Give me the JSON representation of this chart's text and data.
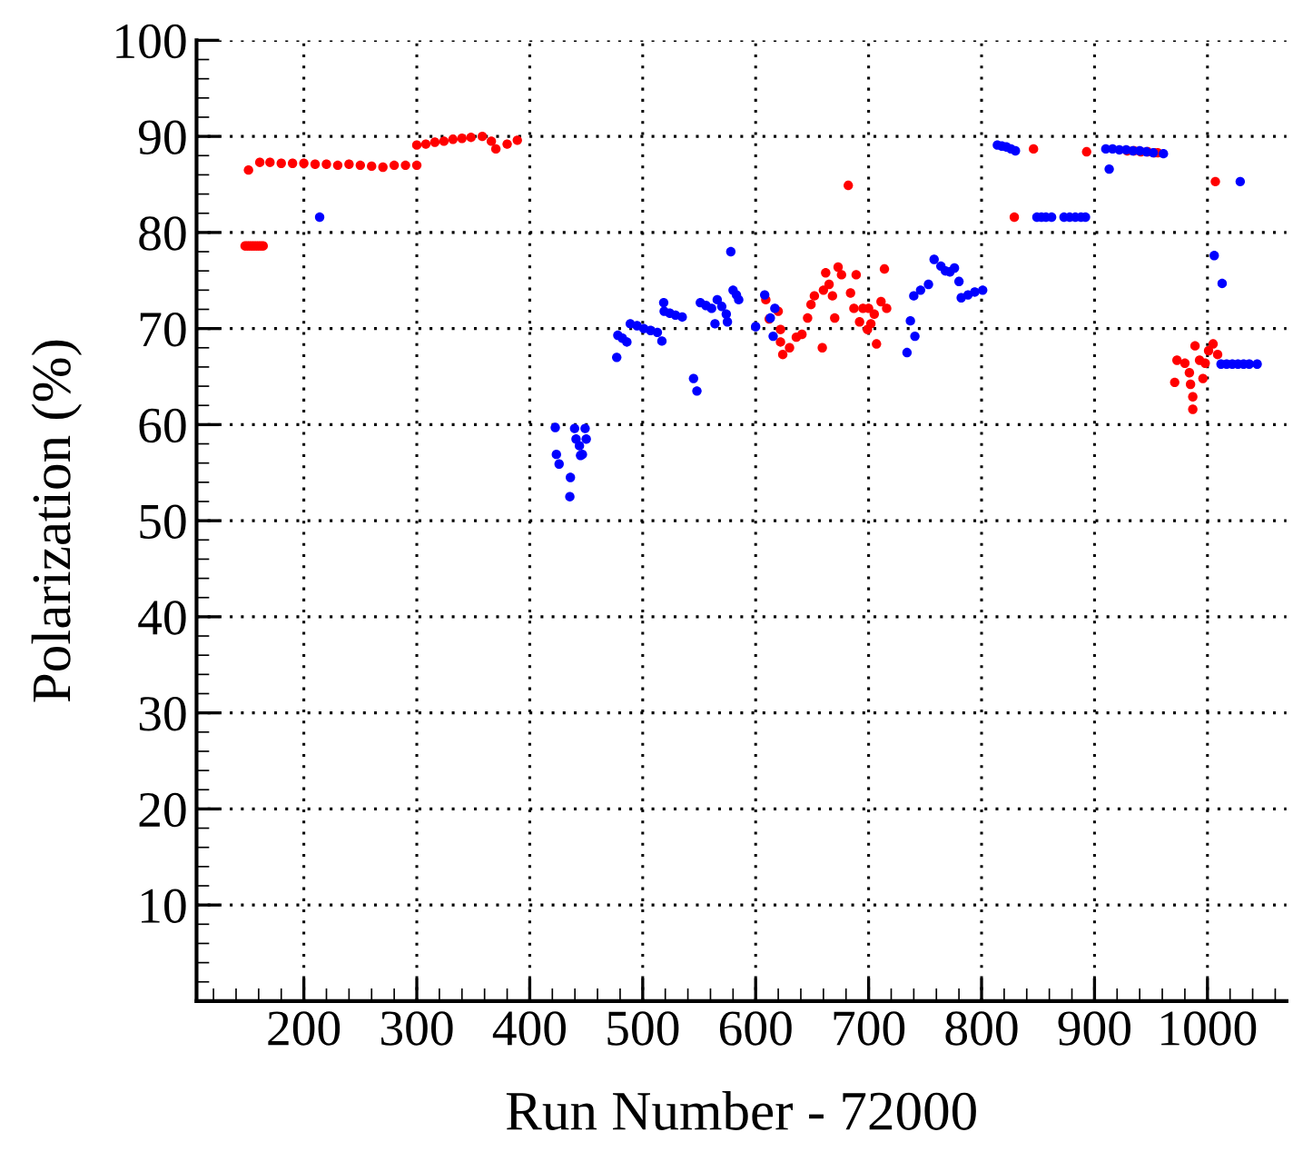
{
  "chart_data": {
    "type": "scatter",
    "xlabel": "Run Number - 72000",
    "ylabel": "Polarization (%)",
    "xlim": [
      105,
      1070
    ],
    "ylim": [
      0,
      100
    ],
    "xticks": [
      200,
      300,
      400,
      500,
      600,
      700,
      800,
      900,
      1000
    ],
    "yticks": [
      10,
      20,
      30,
      40,
      50,
      60,
      70,
      80,
      90,
      100
    ],
    "grid": true,
    "marker": "circle",
    "series": [
      {
        "color": "#ff0000",
        "x": [
          148,
          150,
          152,
          154,
          156,
          158,
          160,
          162,
          164,
          151,
          161,
          170,
          180,
          190,
          200,
          210,
          220,
          230,
          240,
          250,
          260,
          270,
          280,
          290,
          300,
          300,
          308,
          316,
          324,
          332,
          340,
          348,
          358,
          366,
          370,
          380,
          389,
          609,
          612,
          620,
          622,
          622,
          624,
          630,
          636,
          641,
          646,
          649,
          652,
          659,
          660,
          662,
          665,
          668,
          670,
          673,
          676,
          682,
          684,
          687,
          689,
          692,
          695,
          699,
          700,
          702,
          705,
          707,
          711,
          714,
          716,
          829,
          846,
          893,
          929,
          935,
          941,
          947,
          953,
          956,
          971,
          973,
          980,
          984,
          985,
          987,
          987,
          989,
          993,
          996,
          998,
          1001,
          1005,
          1009,
          1007
        ],
        "values": [
          78.6,
          78.6,
          78.6,
          78.6,
          78.6,
          78.6,
          78.6,
          78.6,
          78.6,
          86.5,
          87.3,
          87.3,
          87.2,
          87.2,
          87.2,
          87.1,
          87.1,
          87.0,
          87.1,
          87.0,
          86.9,
          86.8,
          87.0,
          87.0,
          87.0,
          89.1,
          89.2,
          89.4,
          89.5,
          89.7,
          89.8,
          89.9,
          90.0,
          89.5,
          88.7,
          89.2,
          89.6,
          73.0,
          71.0,
          71.8,
          69.9,
          68.6,
          67.3,
          68.0,
          69.1,
          69.4,
          71.1,
          72.5,
          73.4,
          68.0,
          74.0,
          75.8,
          74.6,
          73.4,
          71.1,
          76.4,
          75.6,
          84.9,
          73.7,
          72.1,
          75.6,
          70.7,
          72.1,
          69.9,
          72.1,
          70.5,
          71.5,
          68.4,
          72.8,
          76.2,
          72.1,
          81.6,
          88.7,
          88.4,
          88.5,
          88.5,
          88.4,
          88.4,
          88.3,
          88.3,
          64.4,
          66.7,
          66.4,
          65.4,
          64.2,
          62.9,
          61.6,
          68.2,
          66.7,
          64.8,
          66.4,
          67.7,
          68.4,
          67.3,
          85.3
        ]
      },
      {
        "color": "#0000ff",
        "x": [
          214,
          422.6,
          423.6,
          426,
          436,
          435.5,
          439.7,
          441,
          444,
          446.6,
          449,
          450,
          445,
          477,
          478,
          482,
          486,
          489,
          495,
          501,
          507,
          513,
          517,
          518.6,
          519,
          524,
          529,
          535,
          545,
          548,
          551,
          556,
          561,
          564,
          566,
          570,
          574,
          575,
          578,
          580,
          583,
          585,
          600,
          608,
          613,
          615.5,
          617,
          734,
          737,
          741,
          740,
          746,
          753,
          758,
          764,
          768,
          772,
          776,
          780,
          782,
          788,
          794,
          801,
          814,
          818,
          822,
          826,
          830,
          849,
          853,
          857,
          862,
          873,
          878,
          883,
          888,
          892,
          910,
          916,
          922,
          928,
          934,
          940,
          946,
          952,
          961,
          913,
          1006,
          1013,
          1029,
          1012,
          1017,
          1022,
          1027,
          1032,
          1037,
          1044
        ],
        "values": [
          81.6,
          59.7,
          56.9,
          55.9,
          54.5,
          52.5,
          59.6,
          58.5,
          57.8,
          56.9,
          59.6,
          58.5,
          56.8,
          67.0,
          69.3,
          69.0,
          68.6,
          70.5,
          70.3,
          70.0,
          69.8,
          69.6,
          68.7,
          72.7,
          71.8,
          71.6,
          71.4,
          71.2,
          64.8,
          63.5,
          72.7,
          72.4,
          72.1,
          70.5,
          73.0,
          72.3,
          71.5,
          70.7,
          78.0,
          74.0,
          73.5,
          73.0,
          70.2,
          73.5,
          71.1,
          69.2,
          72.1,
          67.5,
          70.8,
          69.2,
          73.4,
          74.0,
          74.6,
          77.2,
          76.5,
          76.0,
          75.9,
          76.3,
          74.9,
          73.2,
          73.5,
          73.8,
          74.0,
          89.1,
          89.0,
          88.9,
          88.7,
          88.5,
          81.6,
          81.6,
          81.6,
          81.6,
          81.6,
          81.6,
          81.6,
          81.6,
          81.6,
          88.7,
          88.7,
          88.6,
          88.6,
          88.5,
          88.5,
          88.4,
          88.3,
          88.2,
          86.6,
          77.6,
          74.7,
          85.3,
          66.3,
          66.3,
          66.3,
          66.3,
          66.3,
          66.3,
          66.3
        ]
      }
    ]
  }
}
